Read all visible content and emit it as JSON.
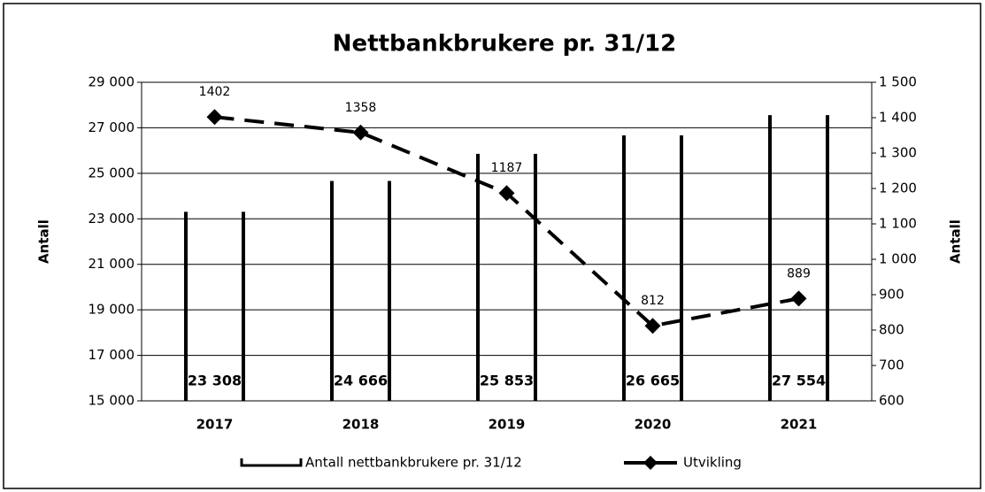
{
  "chart_data": {
    "type": "bar_line",
    "title": "Nettbankbrukere pr. 31/12",
    "y_label": "Antall",
    "y2_label": "Antall",
    "categories": [
      "2017",
      "2018",
      "2019",
      "2020",
      "2021"
    ],
    "series": [
      {
        "name": "Antall nettbankbrukere pr. 31/12",
        "type": "bar",
        "color": "#ffffff",
        "values": [
          23308,
          24666,
          25853,
          26665,
          27554
        ],
        "value_labels": [
          "23 308",
          "24 666",
          "25 853",
          "26 665",
          "27 554"
        ]
      },
      {
        "name": "Utvikling",
        "type": "line",
        "axis": "y2",
        "color": "#000000",
        "values": [
          1402,
          1358,
          1187,
          812,
          889
        ]
      }
    ],
    "ylim": [
      15000,
      29000
    ],
    "yticks": [
      {
        "value": 15000,
        "label": "15 000"
      },
      {
        "value": 17000,
        "label": "17 000"
      },
      {
        "value": 19000,
        "label": "19 000"
      },
      {
        "value": 21000,
        "label": "21 000"
      },
      {
        "value": 23000,
        "label": "23 000"
      },
      {
        "value": 25000,
        "label": "25 000"
      },
      {
        "value": 27000,
        "label": "27 000"
      },
      {
        "value": 29000,
        "label": "29 000"
      }
    ],
    "y2lim": [
      600,
      1500
    ],
    "y2ticks": [
      600,
      700,
      800,
      900,
      {
        "value": 1000,
        "label": "1 000"
      },
      {
        "value": 1100,
        "label": "1 100"
      },
      {
        "value": 1200,
        "label": "1 200"
      },
      {
        "value": 1300,
        "label": "1 300"
      },
      {
        "value": 1400,
        "label": "1 400"
      },
      {
        "value": 1500,
        "label": "1 500"
      }
    ],
    "grid": true,
    "legend": "bottom"
  }
}
